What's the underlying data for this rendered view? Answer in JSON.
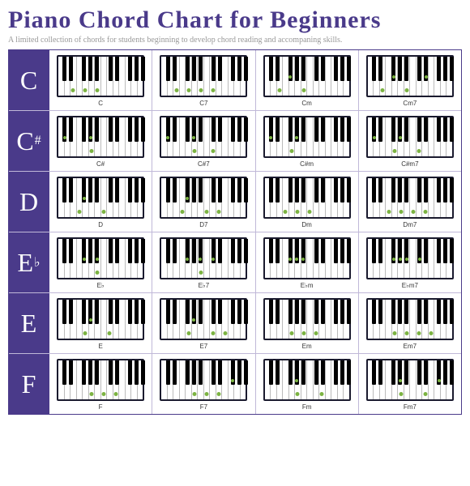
{
  "title": "Piano Chord Chart for Beginners",
  "subtitle": "A limited collection of chords for students beginning to develop chord reading and accompaning skills.",
  "black_key_positions": [
    5.0,
    12.7,
    28.2,
    35.9,
    43.6,
    59.1,
    66.8,
    82.3,
    90.0,
    97.7
  ],
  "dot_color": "#7cb342",
  "accent_color": "#4a3a8a",
  "rows": [
    {
      "label": "C",
      "sup": "",
      "chords": [
        {
          "name": "C",
          "white_dots": [
            2,
            4,
            6
          ],
          "black_dots": []
        },
        {
          "name": "C7",
          "white_dots": [
            2,
            4,
            6,
            8
          ],
          "black_dots": []
        },
        {
          "name": "Cm",
          "white_dots": [
            2,
            6
          ],
          "black_dots": [
            2
          ]
        },
        {
          "name": "Cm7",
          "white_dots": [
            2,
            6
          ],
          "black_dots": [
            2,
            6
          ]
        }
      ]
    },
    {
      "label": "C",
      "sup": "#",
      "chords": [
        {
          "name": "C#",
          "white_dots": [
            5
          ],
          "black_dots": [
            0,
            3
          ]
        },
        {
          "name": "C#7",
          "white_dots": [
            5,
            8
          ],
          "black_dots": [
            0,
            3
          ]
        },
        {
          "name": "C#m",
          "white_dots": [
            4
          ],
          "black_dots": [
            0,
            3
          ]
        },
        {
          "name": "C#m7",
          "white_dots": [
            4,
            8
          ],
          "black_dots": [
            0,
            3
          ]
        }
      ]
    },
    {
      "label": "D",
      "sup": "",
      "chords": [
        {
          "name": "D",
          "white_dots": [
            3,
            7
          ],
          "black_dots": [
            2
          ]
        },
        {
          "name": "D7",
          "white_dots": [
            3,
            7,
            9
          ],
          "black_dots": [
            2
          ]
        },
        {
          "name": "Dm",
          "white_dots": [
            3,
            5,
            7
          ],
          "black_dots": []
        },
        {
          "name": "Dm7",
          "white_dots": [
            3,
            5,
            7,
            9
          ],
          "black_dots": []
        }
      ]
    },
    {
      "label": "E",
      "sup": "♭",
      "chords": [
        {
          "name": "E♭",
          "white_dots": [
            6
          ],
          "black_dots": [
            2,
            4
          ]
        },
        {
          "name": "E♭7",
          "white_dots": [
            6
          ],
          "black_dots": [
            2,
            4,
            5
          ]
        },
        {
          "name": "E♭m",
          "white_dots": [],
          "black_dots": [
            2,
            3,
            4
          ]
        },
        {
          "name": "E♭m7",
          "white_dots": [],
          "black_dots": [
            2,
            3,
            4,
            5
          ]
        }
      ]
    },
    {
      "label": "E",
      "sup": "",
      "chords": [
        {
          "name": "E",
          "white_dots": [
            4,
            8
          ],
          "black_dots": [
            3
          ]
        },
        {
          "name": "E7",
          "white_dots": [
            4,
            8,
            10
          ],
          "black_dots": [
            3
          ]
        },
        {
          "name": "Em",
          "white_dots": [
            4,
            6,
            8
          ],
          "black_dots": []
        },
        {
          "name": "Em7",
          "white_dots": [
            4,
            6,
            8,
            10
          ],
          "black_dots": []
        }
      ]
    },
    {
      "label": "F",
      "sup": "",
      "chords": [
        {
          "name": "F",
          "white_dots": [
            5,
            7,
            9
          ],
          "black_dots": []
        },
        {
          "name": "F7",
          "white_dots": [
            5,
            7,
            9
          ],
          "black_dots": [
            7
          ]
        },
        {
          "name": "Fm",
          "white_dots": [
            5,
            9
          ],
          "black_dots": [
            3
          ]
        },
        {
          "name": "Fm7",
          "white_dots": [
            5,
            9
          ],
          "black_dots": [
            3,
            7
          ]
        }
      ]
    }
  ]
}
